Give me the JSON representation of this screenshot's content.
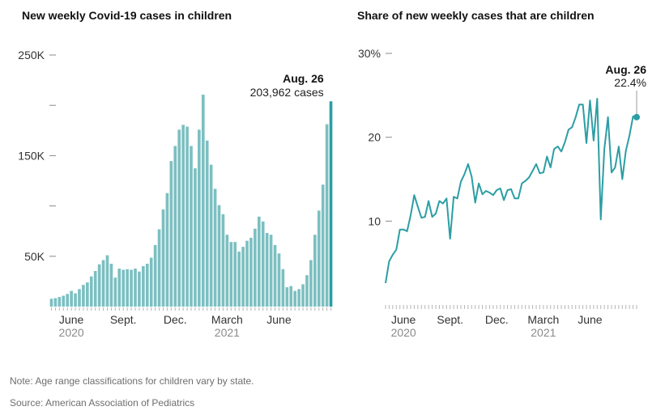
{
  "chart_data": [
    {
      "type": "bar",
      "title": "New weekly Covid-19 cases in children",
      "ylim": [
        0,
        250000
      ],
      "y_ticks": [
        {
          "value": 250000,
          "label": "250K"
        },
        {
          "value": 200000,
          "label": ""
        },
        {
          "value": 150000,
          "label": "150K"
        },
        {
          "value": 100000,
          "label": ""
        },
        {
          "value": 50000,
          "label": "50K"
        }
      ],
      "x_ticks": [
        {
          "index": 5,
          "label": "June",
          "sublabel": "2020"
        },
        {
          "index": 18,
          "label": "Sept.",
          "sublabel": ""
        },
        {
          "index": 31,
          "label": "Dec.",
          "sublabel": ""
        },
        {
          "index": 44,
          "label": "March",
          "sublabel": "2021"
        },
        {
          "index": 57,
          "label": "June",
          "sublabel": ""
        }
      ],
      "color": "#7cbfc1",
      "highlight_color": "#2b9ea4",
      "annotation": {
        "label": "Aug. 26",
        "value_text": "203,962 cases",
        "index": 68
      },
      "values": [
        7800,
        8400,
        9600,
        10800,
        12600,
        15600,
        13200,
        17400,
        21600,
        24000,
        30000,
        35400,
        42000,
        46200,
        51000,
        42600,
        28800,
        37800,
        36600,
        37200,
        36600,
        37800,
        34800,
        40200,
        42600,
        48600,
        61200,
        76800,
        96600,
        112800,
        144600,
        159600,
        175800,
        180600,
        178800,
        159600,
        137400,
        175800,
        210600,
        165000,
        141000,
        117000,
        100800,
        91800,
        71400,
        64200,
        64200,
        54600,
        59400,
        65400,
        68400,
        77400,
        89400,
        84600,
        73200,
        71400,
        61200,
        52800,
        37200,
        19200,
        20400,
        15600,
        17400,
        22200,
        31200,
        46200,
        71400,
        95400,
        121200,
        181200,
        203962
      ]
    },
    {
      "type": "line",
      "title": "Share of new weekly cases that are children",
      "ylim": [
        0,
        30
      ],
      "y_ticks": [
        {
          "value": 30,
          "label": "30%"
        },
        {
          "value": 20,
          "label": "20"
        },
        {
          "value": 10,
          "label": "10"
        }
      ],
      "x_ticks": [
        {
          "index": 5,
          "label": "June",
          "sublabel": "2020"
        },
        {
          "index": 18,
          "label": "Sept.",
          "sublabel": ""
        },
        {
          "index": 31,
          "label": "Dec.",
          "sublabel": ""
        },
        {
          "index": 44,
          "label": "March",
          "sublabel": "2021"
        },
        {
          "index": 57,
          "label": "June",
          "sublabel": ""
        }
      ],
      "color": "#2b9ea4",
      "annotation": {
        "label": "Aug. 26",
        "value_text": "22.4%",
        "index": 71
      },
      "values": [
        2.6,
        5.2,
        6.0,
        6.6,
        9.0,
        9.0,
        8.8,
        10.7,
        13.1,
        11.7,
        10.4,
        10.5,
        12.4,
        10.5,
        10.9,
        12.4,
        12.1,
        12.7,
        7.9,
        12.9,
        12.7,
        14.7,
        15.6,
        16.8,
        15.3,
        12.2,
        14.5,
        13.2,
        13.6,
        13.4,
        13.1,
        13.7,
        13.9,
        12.5,
        13.7,
        13.8,
        12.7,
        12.7,
        14.5,
        14.8,
        15.2,
        16.0,
        16.8,
        15.7,
        15.8,
        17.7,
        16.4,
        18.6,
        18.9,
        18.3,
        19.4,
        20.9,
        21.2,
        22.4,
        23.9,
        23.9,
        19.3,
        24.4,
        19.6,
        24.6,
        10.2,
        18.6,
        22.4,
        15.8,
        16.4,
        18.9,
        15.0,
        18.4,
        20.2,
        22.5,
        22.4
      ]
    }
  ],
  "note": "Note: Age range classifications for children vary by state.",
  "source": "Source: American Association of Pediatrics"
}
